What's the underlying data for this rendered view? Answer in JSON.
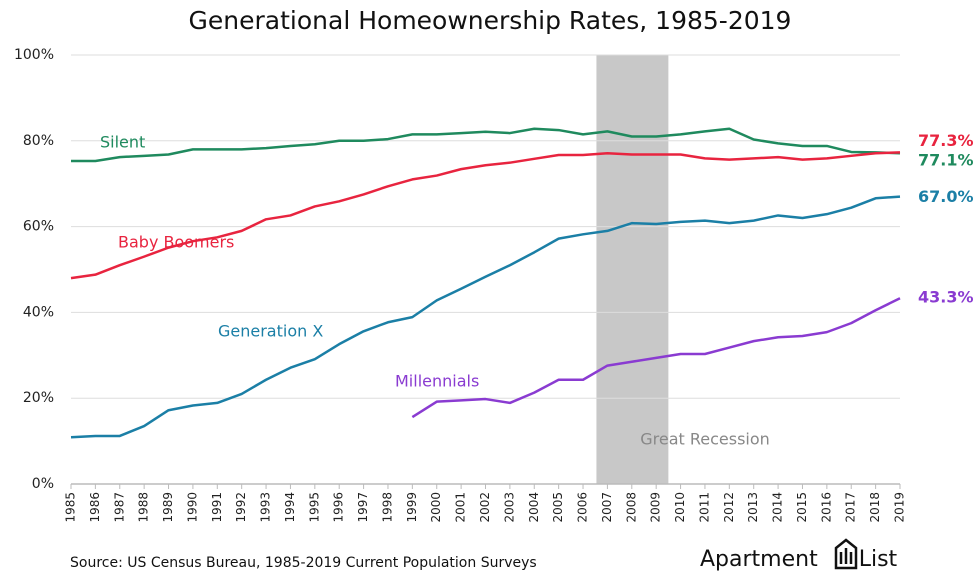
{
  "chart_data": {
    "type": "line",
    "title": "Generational Homeownership Rates, 1985-2019",
    "source": "Source: US Census Bureau, 1985-2019 Current Population Surveys",
    "logo": "Apartment List",
    "x": [
      1985,
      1986,
      1987,
      1988,
      1989,
      1990,
      1991,
      1992,
      1993,
      1994,
      1995,
      1996,
      1997,
      1998,
      1999,
      2000,
      2001,
      2002,
      2003,
      2004,
      2005,
      2006,
      2007,
      2008,
      2009,
      2010,
      2011,
      2012,
      2013,
      2014,
      2015,
      2016,
      2017,
      2018,
      2019
    ],
    "xlim": [
      1985,
      2019
    ],
    "xticks": [
      1985,
      1986,
      1987,
      1988,
      1989,
      1990,
      1991,
      1992,
      1993,
      1994,
      1995,
      1996,
      1997,
      1998,
      1999,
      2000,
      2001,
      2002,
      2003,
      2004,
      2005,
      2006,
      2007,
      2008,
      2009,
      2010,
      2011,
      2012,
      2013,
      2014,
      2015,
      2016,
      2017,
      2018,
      2019
    ],
    "ylim": [
      0,
      100
    ],
    "yticks": [
      {
        "value": 0,
        "label": "0%"
      },
      {
        "value": 20,
        "label": "20%"
      },
      {
        "value": 40,
        "label": "40%"
      },
      {
        "value": 60,
        "label": "60%"
      },
      {
        "value": 80,
        "label": "80%"
      },
      {
        "value": 100,
        "label": "100%"
      }
    ],
    "grid": true,
    "shaded_region": {
      "label": "Great Recession",
      "x_range": [
        2006.55,
        2009.5
      ],
      "color": "#c8c8c8"
    },
    "series": [
      {
        "name": "Silent",
        "color": "#1f8a5e",
        "values": [
          75.3,
          75.3,
          76.2,
          76.5,
          76.8,
          78,
          78,
          78,
          78.3,
          78.8,
          79.2,
          80,
          80,
          80.4,
          81.5,
          81.5,
          81.8,
          82.1,
          81.8,
          82.8,
          82.5,
          81.5,
          82.2,
          81,
          81,
          81.5,
          82.2,
          82.8,
          80.3,
          79.4,
          78.8,
          78.8,
          77.4,
          77.3,
          77.1
        ],
        "value_labels": [
          null,
          null,
          null,
          null,
          null,
          null,
          null,
          null,
          null,
          null,
          null,
          null,
          null,
          null,
          null,
          null,
          null,
          null,
          null,
          null,
          null,
          null,
          null,
          null,
          null,
          null,
          null,
          null,
          null,
          null,
          null,
          null,
          null,
          null,
          "77.1%"
        ]
      },
      {
        "name": "Baby Boomers",
        "color": "#e8243f",
        "values": [
          48,
          48.8,
          51,
          53,
          55.1,
          56.6,
          57.5,
          59,
          61.7,
          62.6,
          64.7,
          65.9,
          67.5,
          69.4,
          71,
          71.9,
          73.4,
          74.3,
          74.9,
          75.8,
          76.7,
          76.7,
          77.1,
          76.8,
          76.8,
          76.8,
          75.9,
          75.6,
          75.9,
          76.2,
          75.6,
          75.9,
          76.5,
          77.1,
          77.3
        ],
        "value_labels": [
          null,
          null,
          null,
          null,
          null,
          null,
          null,
          null,
          null,
          null,
          null,
          null,
          null,
          null,
          null,
          null,
          null,
          null,
          null,
          null,
          null,
          null,
          null,
          null,
          null,
          null,
          null,
          null,
          null,
          null,
          null,
          null,
          null,
          null,
          "77.3%"
        ]
      },
      {
        "name": "Generation X",
        "color": "#1b7fa6",
        "values": [
          10.9,
          11.2,
          11.2,
          13.5,
          17.2,
          18.3,
          18.9,
          21,
          24.3,
          27.1,
          29.1,
          32.6,
          35.6,
          37.7,
          38.9,
          42.8,
          45.5,
          48.3,
          51,
          54,
          57.2,
          58.2,
          59,
          60.8,
          60.6,
          61.1,
          61.4,
          60.8,
          61.4,
          62.6,
          62,
          62.9,
          64.4,
          66.6,
          67.0
        ],
        "value_labels": [
          null,
          null,
          null,
          null,
          null,
          null,
          null,
          null,
          null,
          null,
          null,
          null,
          null,
          null,
          null,
          null,
          null,
          null,
          null,
          null,
          null,
          null,
          null,
          null,
          null,
          null,
          null,
          null,
          null,
          null,
          null,
          null,
          null,
          null,
          "67.0%"
        ]
      },
      {
        "name": "Millennials",
        "color": "#8a3bd1",
        "values": [
          null,
          null,
          null,
          null,
          null,
          null,
          null,
          null,
          null,
          null,
          null,
          null,
          null,
          null,
          15.6,
          19.2,
          19.5,
          19.8,
          18.9,
          21.3,
          24.3,
          24.3,
          27.6,
          28.5,
          29.4,
          30.3,
          30.3,
          31.8,
          33.3,
          34.2,
          34.5,
          35.4,
          37.5,
          40.5,
          43.3
        ],
        "value_labels": [
          null,
          null,
          null,
          null,
          null,
          null,
          null,
          null,
          null,
          null,
          null,
          null,
          null,
          null,
          null,
          null,
          null,
          null,
          null,
          null,
          null,
          null,
          null,
          null,
          null,
          null,
          null,
          null,
          null,
          null,
          null,
          null,
          null,
          null,
          "43.3%"
        ]
      }
    ]
  }
}
